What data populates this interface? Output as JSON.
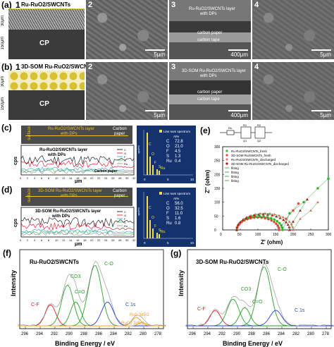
{
  "panel_a": {
    "label": "(a)",
    "model_number": "1",
    "model_title": "Ru-RuO2/SWCNTs",
    "thickness_top": "30μm",
    "thickness_bottom": "150μm",
    "cp": "CP",
    "sem": [
      {
        "n": "2",
        "scale": "5μm"
      },
      {
        "n": "3",
        "scale": "400μm",
        "t1": "Ru-RuO2/SWCNTs layer",
        "t2": "with DPs",
        "t3": "carbon paper",
        "t4": "carbon tape"
      },
      {
        "n": "4",
        "scale": "5μm"
      }
    ]
  },
  "panel_b": {
    "label": "(b)",
    "model_number": "1",
    "model_title": "3D-SOM Ru-RuO2/SWCNTs",
    "thickness_top": "30μm",
    "thickness_bottom": "150μm",
    "cp": "CP",
    "sem": [
      {
        "n": "2",
        "scale": "5μm"
      },
      {
        "n": "3",
        "scale": "400μm",
        "t1": "3D-SOM Ru-RuO2/SWCNTs layer",
        "t2": "with DPs",
        "t3": "carbon paper",
        "t4": "carbon tape"
      },
      {
        "n": "4",
        "scale": "5μm"
      }
    ]
  },
  "panel_c": {
    "label": "(c)",
    "surface": "surface",
    "img_label": "Ru-RuO2/SWCNTs layer",
    "img_label2": "with DPs",
    "carbon": "Carbon",
    "paper": "paper",
    "plot_label": "Ru-RuO2/SWCNTs layer",
    "plot_label2": "with DPs",
    "cp_label": "Carbon paper",
    "ylabel": "cps",
    "xlabel": "μm",
    "x_ticks": [
      "0",
      "2",
      "4",
      "6",
      "8",
      "10",
      "12",
      "14",
      "16",
      "18",
      "20",
      "22",
      "24",
      "26",
      "28",
      "30",
      "32"
    ],
    "legend": [
      "C",
      "O",
      "F",
      "S",
      "Ru"
    ],
    "spectrum": {
      "title": "Line sum spectrum",
      "at": "At%",
      "elements": [
        "C",
        "O",
        "F",
        "S",
        "Ru"
      ],
      "values": [
        "72.8",
        "21.0",
        "4.5",
        "1.3",
        "0.4"
      ],
      "yaxis": "cps/eV",
      "x_ticks": [
        "0",
        "5",
        "10"
      ],
      "peaks": [
        "C",
        "O",
        "F",
        "S",
        "Ru"
      ]
    }
  },
  "panel_d": {
    "label": "(d)",
    "surface": "surface",
    "img_label": "3D-SOM Ru-RuO2/SWCNTs layer",
    "img_label2": "with DPs",
    "carbon": "Carbon",
    "paper": "paper",
    "plot_label": "3D-SOM Ru-RuO2/SWCNTs layer",
    "plot_label2": "with DPs",
    "ylabel": "cps",
    "xlabel": "μm",
    "x_ticks": [
      "0",
      "2",
      "4",
      "6",
      "8",
      "10",
      "12",
      "14",
      "16",
      "18",
      "20",
      "22",
      "24",
      "26",
      "28",
      "30",
      "32"
    ],
    "legend": [
      "C",
      "O",
      "F",
      "S",
      "Ru"
    ],
    "spectrum": {
      "title": "Line sum spectrum",
      "at": "At%",
      "elements": [
        "C",
        "O",
        "F",
        "S",
        "Ru"
      ],
      "values": [
        "56.0",
        "32.5",
        "11.0",
        "1.6",
        "0.8"
      ],
      "yaxis": "cps/eV",
      "x_ticks": [
        "0",
        "5",
        "10"
      ],
      "peaks": [
        "C",
        "O",
        "F",
        "S",
        "Ru"
      ]
    }
  },
  "panel_e": {
    "label": "(e)",
    "ylabel": "Z'' (ohm)",
    "xlabel": "Z' (ohm)",
    "y_ticks": [
      "0",
      "50",
      "100",
      "150",
      "200",
      "250",
      "300"
    ],
    "x_ticks": [
      "0",
      "50",
      "100",
      "150",
      "200",
      "250",
      "300"
    ],
    "legend": [
      "Ru-RuO2/SWCNTs_fresh",
      "3D-SOM Ru/SWCNTs_fresh",
      "Ru-RuO2/SWCNTs_discharged",
      "3D-SOM Ru-RuO2/SWCNTs_discharged",
      "fitting",
      "fitting",
      "fitting",
      "fitting"
    ],
    "circuit": [
      "Rs",
      "R1",
      "R2",
      "Q1",
      "Q2"
    ]
  },
  "panel_f": {
    "label": "(f)",
    "title": "Ru-RuO2/SWCNTs",
    "ylabel": "Intensity",
    "xlabel": "Binding Energy / eV",
    "x_ticks": [
      "296",
      "294",
      "292",
      "290",
      "288",
      "286",
      "284",
      "282",
      "280",
      "278"
    ],
    "annotations": [
      "C-O",
      "CO3",
      "C=O",
      "C-F",
      "C 1s",
      "Ru0 3d5/2",
      "RuO2 3d5/2"
    ]
  },
  "panel_g": {
    "label": "(g)",
    "title": "3D-SOM Ru-RuO2/SWCNTs",
    "ylabel": "Intensity",
    "xlabel": "Binding Energy / eV",
    "x_ticks": [
      "296",
      "294",
      "292",
      "290",
      "288",
      "286",
      "284",
      "282",
      "280",
      "278"
    ],
    "annotations": [
      "C-O",
      "CO3",
      "C=O",
      "C-F",
      "C 1s"
    ]
  },
  "colors": {
    "navy": "#1a2a6c",
    "eds_bg": "#14336e",
    "C": "#000000",
    "O": "#e0001a",
    "F": "#2a9fd6",
    "S": "#2fb84f",
    "Ru": "#8a8a8a",
    "xps_red": "#d62020",
    "xps_green": "#2aa02a",
    "xps_blue": "#2040d0",
    "xps_orange": "#f0a020",
    "xps_teal": "#1c8c8c"
  }
}
